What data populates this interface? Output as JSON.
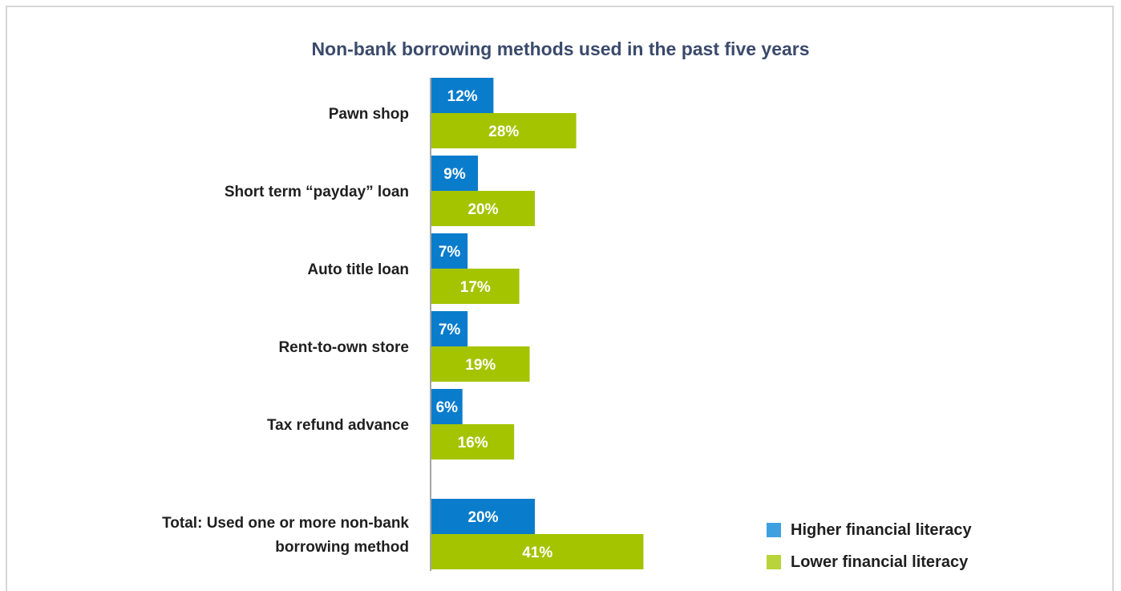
{
  "chart_data": {
    "type": "bar",
    "orientation": "horizontal",
    "title": "Non-bank borrowing methods used in the past five years",
    "categories": [
      [
        "Pawn shop"
      ],
      [
        "Short term “payday” loan"
      ],
      [
        "Auto title loan"
      ],
      [
        "Rent-to-own store"
      ],
      [
        "Tax refund advance"
      ],
      [
        "Total: Used one or more non-bank",
        "borrowing method"
      ]
    ],
    "series": [
      {
        "name": "Higher financial literacy",
        "color": "#0a7ccc",
        "values": [
          12,
          9,
          7,
          7,
          6,
          20
        ],
        "labels": [
          "12%",
          "9%",
          "7%",
          "7%",
          "6%",
          "20%"
        ]
      },
      {
        "name": "Lower financial literacy",
        "color": "#a4c400",
        "values": [
          28,
          20,
          17,
          19,
          16,
          41
        ],
        "labels": [
          "28%",
          "20%",
          "17%",
          "19%",
          "16%",
          "41%"
        ]
      }
    ],
    "legend": {
      "position": "bottom-right",
      "swatch_colors": [
        "#3fa0e0",
        "#b8d43a"
      ]
    },
    "grid": false,
    "xlim": [
      0,
      100
    ]
  }
}
